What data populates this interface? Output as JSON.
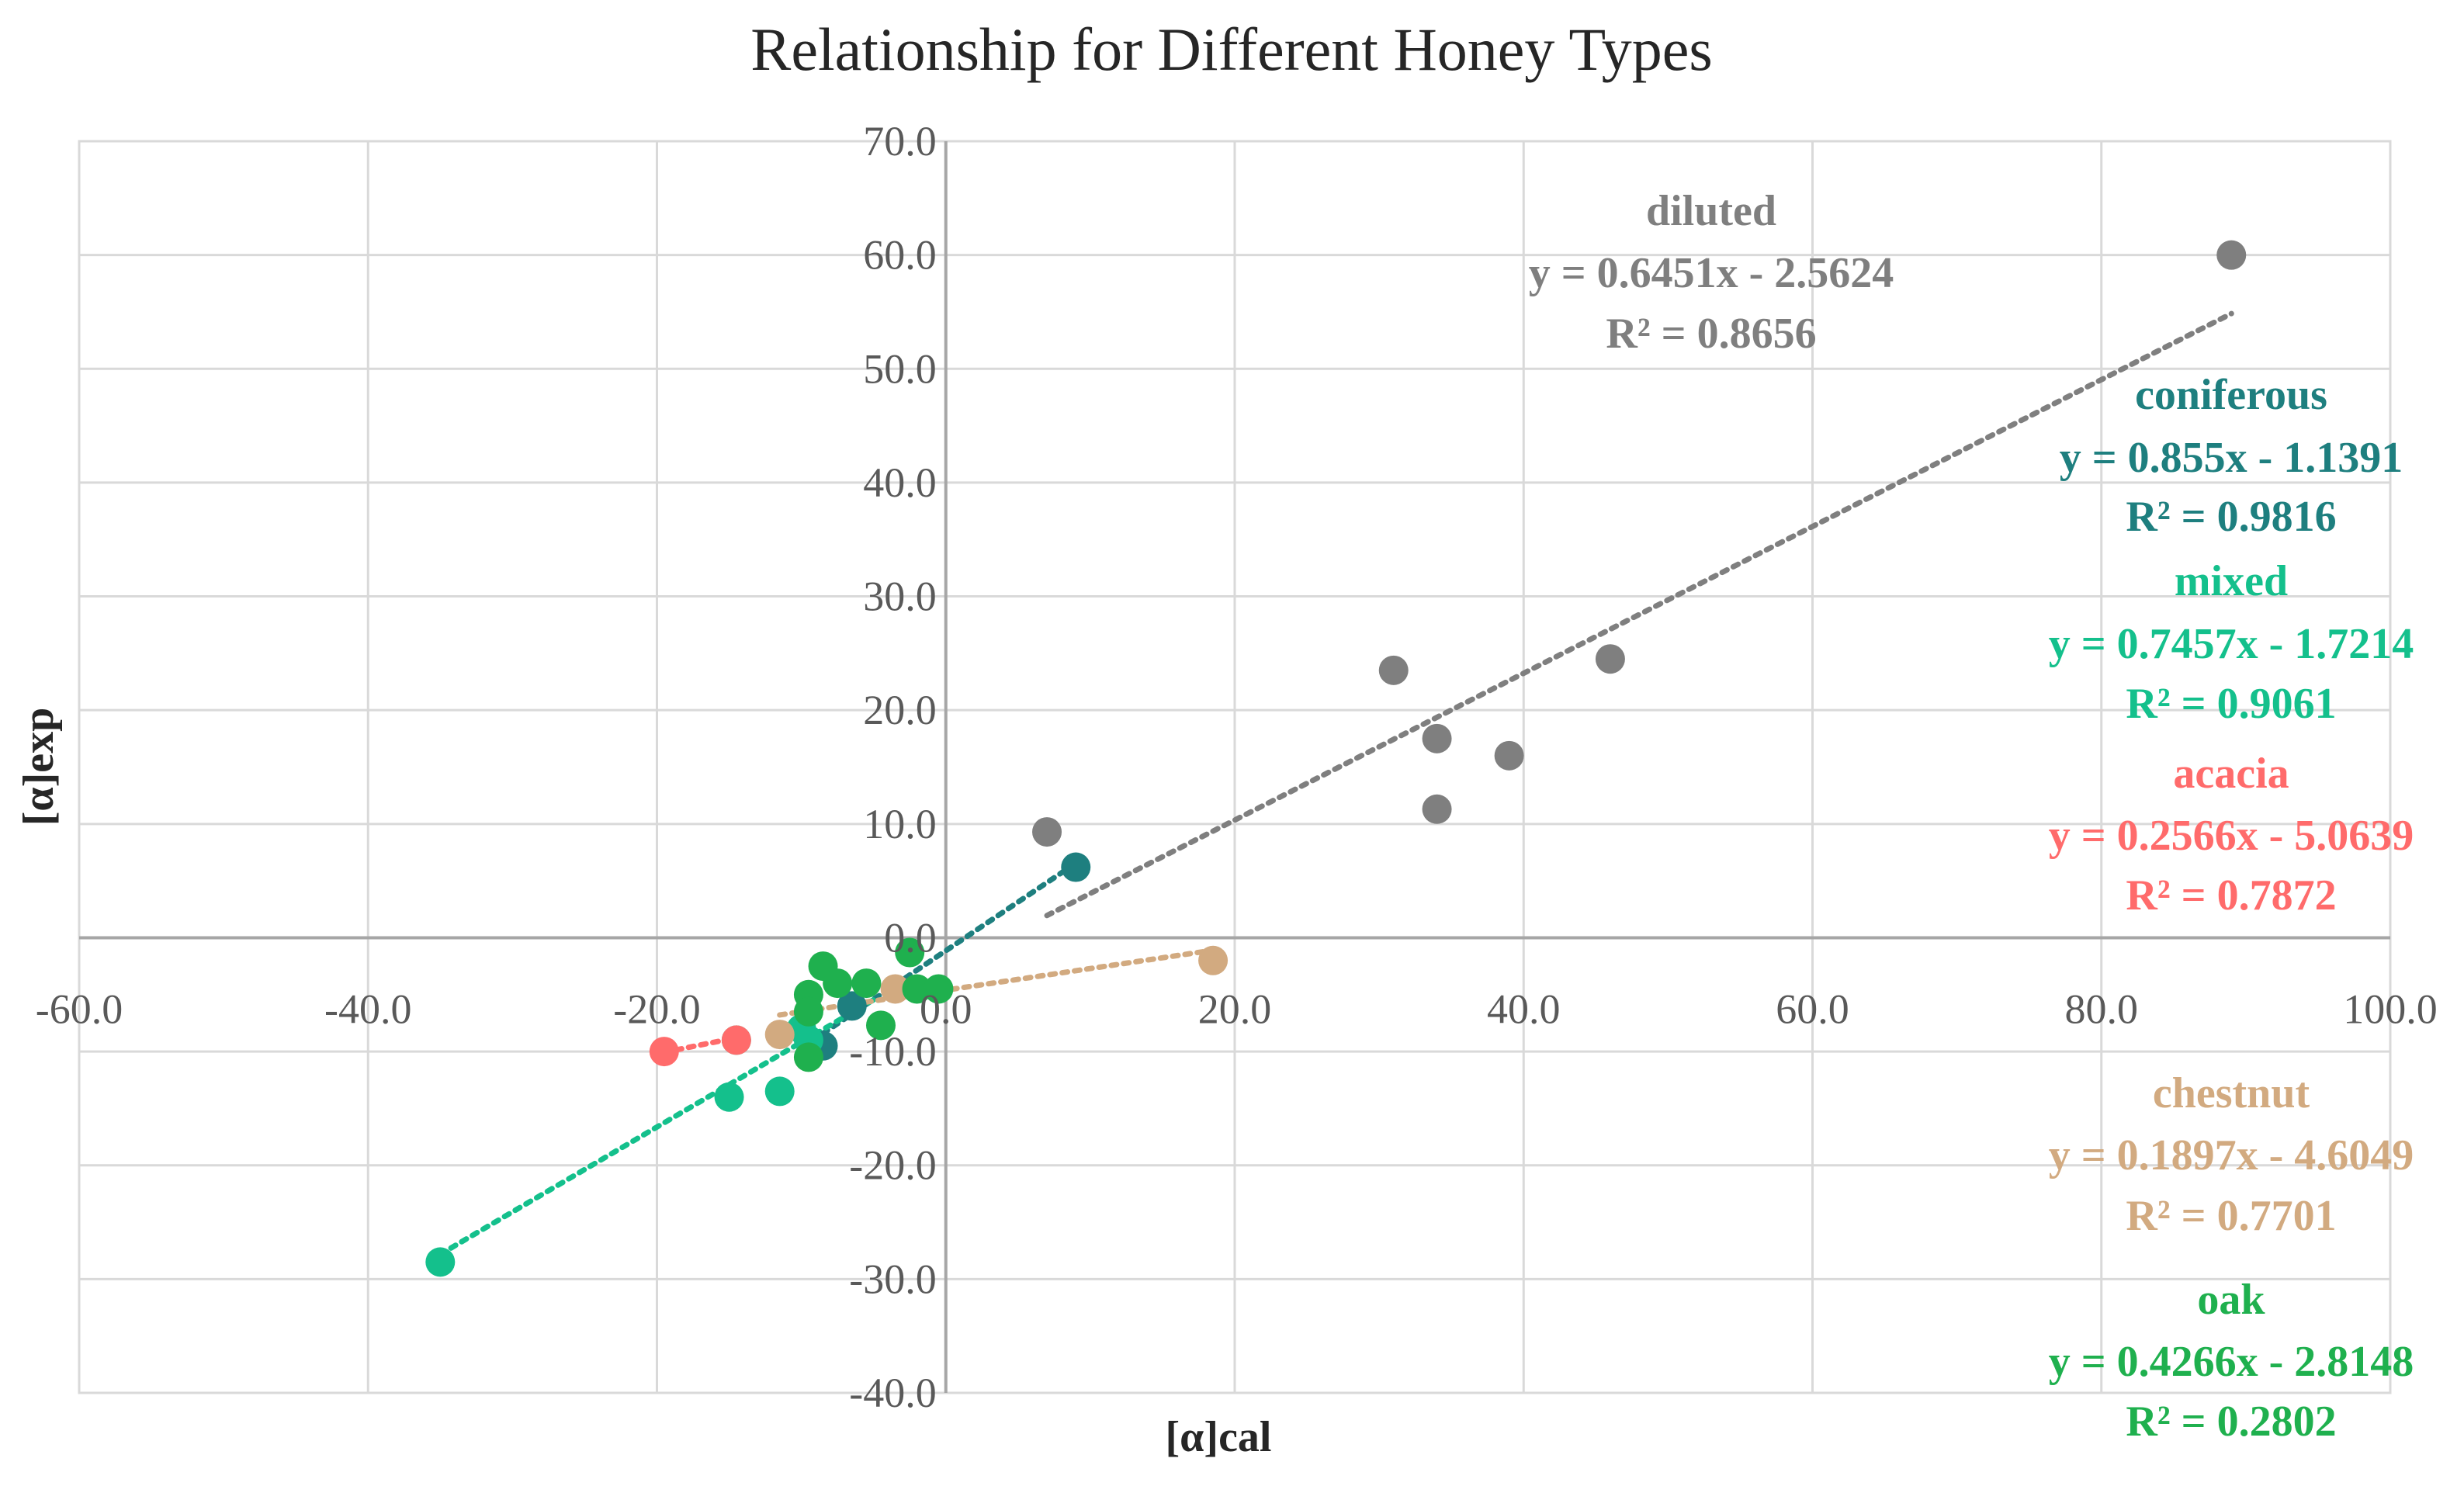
{
  "chart_data": {
    "type": "scatter",
    "title": "Relationship for Different Honey Types",
    "xlabel": "[α]cal",
    "ylabel": "[α]exp",
    "xlim": [
      -60,
      100
    ],
    "ylim": [
      -40,
      70
    ],
    "x_ticks": [
      "-60.0",
      "-40.0",
      "-20.0",
      "0.0",
      "20.0",
      "40.0",
      "60.0",
      "80.0",
      "100.0"
    ],
    "y_ticks": [
      "70.0",
      "60.0",
      "50.0",
      "40.0",
      "30.0",
      "20.0",
      "10.0",
      "0.0",
      "-10.0",
      "-20.0",
      "-30.0",
      "-40.0"
    ],
    "x_tick_values": [
      -60,
      -40,
      -20,
      0,
      20,
      40,
      60,
      80,
      100
    ],
    "y_tick_values": [
      70,
      60,
      50,
      40,
      30,
      20,
      10,
      0,
      -10,
      -20,
      -30,
      -40
    ],
    "grid": true,
    "legend": "none",
    "series": [
      {
        "name": "diluted",
        "color": "#7f7f7f",
        "points": [
          [
            89.0,
            60.0
          ],
          [
            46.0,
            24.5
          ],
          [
            31.0,
            23.5
          ],
          [
            34.0,
            17.5
          ],
          [
            39.0,
            16.0
          ],
          [
            34.0,
            11.3
          ],
          [
            7.0,
            9.3
          ]
        ],
        "trendline": {
          "slope": 0.6451,
          "intercept": -2.5624,
          "x_range": [
            7.0,
            89.0
          ]
        },
        "equation": "y = 0.6451x - 2.5624",
        "r2": "R² = 0.8656"
      },
      {
        "name": "coniferous",
        "color": "#1e7f7f",
        "points": [
          [
            9.0,
            6.2
          ],
          [
            -6.5,
            -6.0
          ],
          [
            -8.5,
            -9.5
          ]
        ],
        "trendline": {
          "slope": 0.855,
          "intercept": -1.1391,
          "x_range": [
            -8.5,
            9.0
          ]
        },
        "equation": "y = 0.855x - 1.1391",
        "r2": "R² = 0.9816"
      },
      {
        "name": "mixed",
        "color": "#14c08c",
        "points": [
          [
            -35.0,
            -28.5
          ],
          [
            -15.0,
            -14.0
          ],
          [
            -11.5,
            -13.5
          ],
          [
            -9.5,
            -9.0
          ],
          [
            -14.5,
            -9.0
          ],
          [
            -10.0,
            -8.0
          ]
        ],
        "trendline": {
          "slope": 0.7457,
          "intercept": -1.7214,
          "x_range": [
            -35.0,
            -5.0
          ]
        },
        "equation": "y = 0.7457x - 1.7214",
        "r2": "R² = 0.9061"
      },
      {
        "name": "acacia",
        "color": "#ff6b6b",
        "points": [
          [
            -19.5,
            -10.0
          ],
          [
            -14.5,
            -9.0
          ]
        ],
        "trendline": {
          "slope": 0.2566,
          "intercept": -5.0639,
          "x_range": [
            -19.5,
            -14.5
          ]
        },
        "equation": "y = 0.2566x - 5.0639",
        "r2": "R² = 0.7872"
      },
      {
        "name": "chestnut",
        "color": "#d2aa80",
        "points": [
          [
            18.5,
            -2.0
          ],
          [
            -3.5,
            -4.5
          ],
          [
            -11.5,
            -8.5
          ]
        ],
        "trendline": {
          "slope": 0.1897,
          "intercept": -4.6049,
          "x_range": [
            -11.5,
            18.5
          ]
        },
        "equation": "y = 0.1897x - 4.6049",
        "r2": "R² = 0.7701"
      },
      {
        "name": "oak",
        "color": "#1fb04e",
        "points": [
          [
            -8.5,
            -2.5
          ],
          [
            -2.5,
            -1.3
          ],
          [
            -2.0,
            -4.5
          ],
          [
            -0.5,
            -4.5
          ],
          [
            -9.5,
            -5.0
          ],
          [
            -9.5,
            -6.5
          ],
          [
            -4.5,
            -7.7
          ],
          [
            -9.5,
            -10.5
          ],
          [
            -7.5,
            -4.0
          ],
          [
            -5.5,
            -4.0
          ]
        ],
        "trendline": null,
        "equation": "y = 0.4266x - 2.8148",
        "r2": "R² = 0.2802"
      }
    ]
  }
}
